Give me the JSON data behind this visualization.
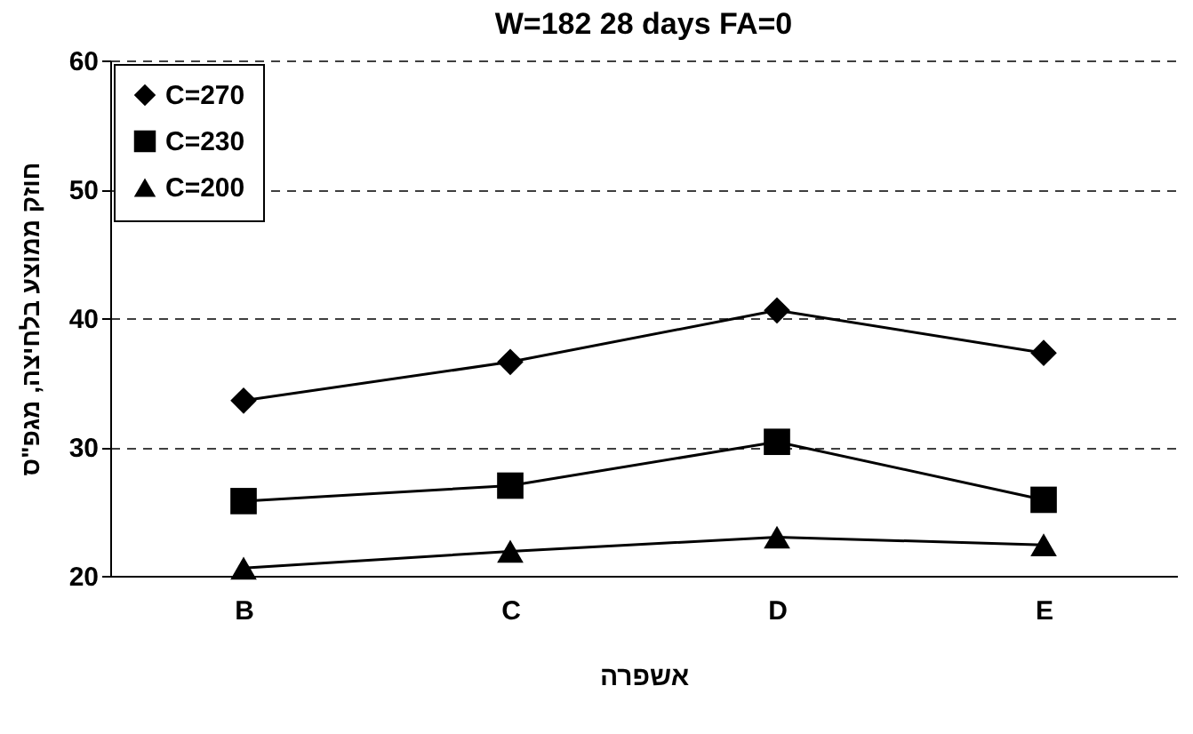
{
  "chart_data": {
    "type": "line",
    "title": "W=182 28 days FA=0",
    "xlabel": "אשפרה",
    "ylabel": "חוזק ממוצע בלחיצה, מגפ\"ס",
    "categories": [
      "B",
      "C",
      "D",
      "E"
    ],
    "series": [
      {
        "name": "C=270",
        "color": "#000000",
        "marker": "diamond",
        "values": [
          33.6,
          36.6,
          40.6,
          37.3
        ]
      },
      {
        "name": "C=230",
        "color": "#000000",
        "marker": "square",
        "values": [
          25.8,
          27.0,
          30.4,
          25.9
        ]
      },
      {
        "name": "C=200",
        "color": "#000000",
        "marker": "triangle",
        "values": [
          20.6,
          21.9,
          23.0,
          22.4
        ]
      }
    ],
    "ylim": [
      20,
      60
    ],
    "yticks": [
      20,
      30,
      40,
      50,
      60
    ],
    "grid": "y",
    "line_style": "solid",
    "legend": "top left"
  }
}
